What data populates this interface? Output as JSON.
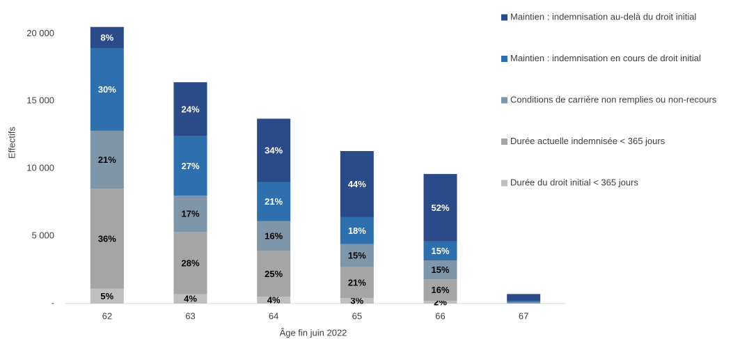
{
  "chart_data": {
    "type": "stacked_bar",
    "x_label": "Âge fin juin 2022",
    "y_label": "Effectifs",
    "categories": [
      "62",
      "63",
      "64",
      "65",
      "66",
      "67"
    ],
    "series": [
      {
        "name": "Durée du droit initial < 365 jours",
        "color": "#bfbfbf",
        "label_color": "#000000",
        "values": [
          1100,
          700,
          500,
          400,
          200,
          0
        ],
        "labels": [
          "5%",
          "4%",
          "4%",
          "3%",
          "2%",
          null
        ]
      },
      {
        "name": "Durée actuelle indemnisée < 365 jours",
        "color": "#a5a5a5",
        "label_color": "#000000",
        "values": [
          7400,
          4600,
          3400,
          2300,
          1600,
          0
        ],
        "labels": [
          "36%",
          "28%",
          "25%",
          "21%",
          "16%",
          null
        ]
      },
      {
        "name": "Conditions de carrière non remplies ou non-recours",
        "color": "#7f95a8",
        "label_color": "#000000",
        "values": [
          4300,
          2700,
          2200,
          1700,
          1400,
          100
        ],
        "labels": [
          "21%",
          "17%",
          "16%",
          "15%",
          "15%",
          null
        ]
      },
      {
        "name": "Maintien : indemnisation en cours de droit initial",
        "color": "#2e6fae",
        "label_color": "#ffffff",
        "values": [
          6100,
          4400,
          2900,
          2000,
          1400,
          100
        ],
        "labels": [
          "30%",
          "27%",
          "21%",
          "18%",
          "15%",
          null
        ]
      },
      {
        "name": "Maintien : indemnisation au-delà du droit initial",
        "color": "#2b4a8a",
        "label_color": "#ffffff",
        "values": [
          1600,
          4000,
          4700,
          4900,
          5000,
          500
        ],
        "labels": [
          "8%",
          "24%",
          "34%",
          "44%",
          "52%",
          null
        ]
      }
    ],
    "ylim": [
      0,
      21000
    ],
    "yticks": [
      {
        "value": 0,
        "label": "-"
      },
      {
        "value": 5000,
        "label": "5 000"
      },
      {
        "value": 10000,
        "label": "10 000"
      },
      {
        "value": 15000,
        "label": "15 000"
      },
      {
        "value": 20000,
        "label": "20 000"
      }
    ],
    "legend": "right"
  }
}
